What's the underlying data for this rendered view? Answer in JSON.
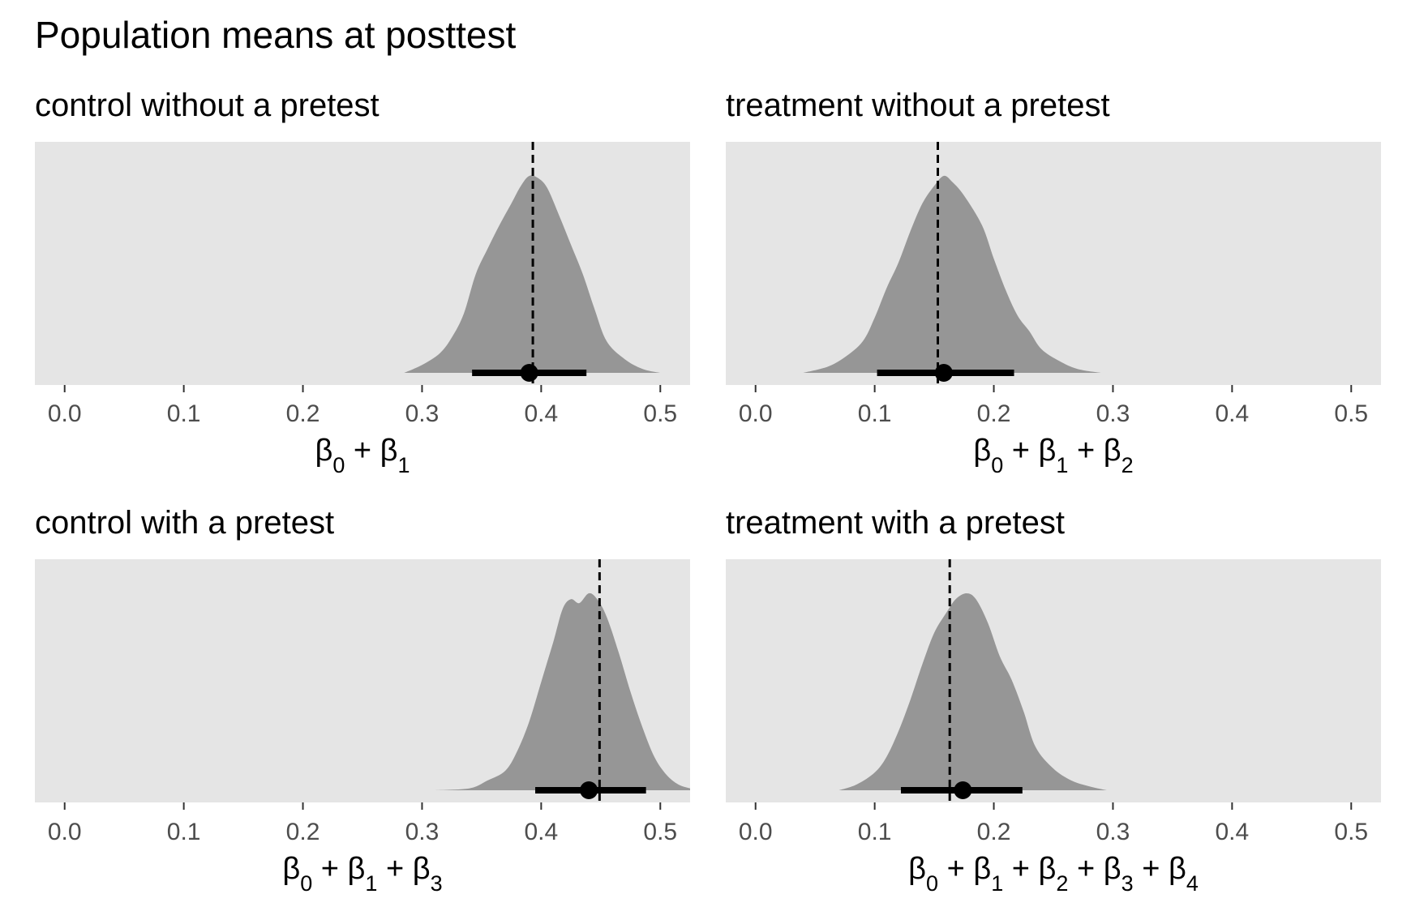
{
  "title": "Population means at posttest",
  "colors": {
    "panel_background": "#e5e5e5",
    "density_fill": "#969696",
    "interval": "#000000",
    "reference_line": "#000000",
    "tick_label": "#4d4d4d"
  },
  "chart_data": [
    {
      "type": "area",
      "title": "control without a pretest",
      "xlabel": "β0 + β1",
      "xlabel_parts": [
        [
          "β",
          "0"
        ],
        [
          "β",
          "1"
        ]
      ],
      "xlim": [
        -0.025,
        0.525
      ],
      "xticks": [
        0.0,
        0.1,
        0.2,
        0.3,
        0.4,
        0.5
      ],
      "tick_labels": [
        "0.0",
        "0.1",
        "0.2",
        "0.3",
        "0.4",
        "0.5"
      ],
      "grid": false,
      "reference_line": 0.393,
      "point_estimate": 0.39,
      "interval": [
        0.342,
        0.438
      ],
      "density": {
        "x": [
          0.285,
          0.3,
          0.315,
          0.325,
          0.335,
          0.345,
          0.355,
          0.365,
          0.375,
          0.383,
          0.39,
          0.397,
          0.405,
          0.415,
          0.425,
          0.435,
          0.445,
          0.455,
          0.47,
          0.485,
          0.5
        ],
        "y": [
          0.0,
          0.04,
          0.1,
          0.18,
          0.3,
          0.5,
          0.63,
          0.75,
          0.86,
          0.95,
          1.0,
          0.99,
          0.94,
          0.8,
          0.65,
          0.5,
          0.32,
          0.16,
          0.07,
          0.02,
          0.0
        ]
      }
    },
    {
      "type": "area",
      "title": "treatment without a pretest",
      "xlabel": "β0 + β1 + β2",
      "xlabel_parts": [
        [
          "β",
          "0"
        ],
        [
          "β",
          "1"
        ],
        [
          "β",
          "2"
        ]
      ],
      "xlim": [
        -0.025,
        0.525
      ],
      "xticks": [
        0.0,
        0.1,
        0.2,
        0.3,
        0.4,
        0.5
      ],
      "tick_labels": [
        "0.0",
        "0.1",
        "0.2",
        "0.3",
        "0.4",
        "0.5"
      ],
      "grid": false,
      "reference_line": 0.153,
      "point_estimate": 0.158,
      "interval": [
        0.102,
        0.217
      ],
      "density": {
        "x": [
          0.04,
          0.06,
          0.075,
          0.09,
          0.1,
          0.11,
          0.12,
          0.13,
          0.14,
          0.15,
          0.158,
          0.165,
          0.175,
          0.19,
          0.2,
          0.21,
          0.22,
          0.23,
          0.24,
          0.255,
          0.27,
          0.29
        ],
        "y": [
          0.0,
          0.03,
          0.08,
          0.16,
          0.28,
          0.43,
          0.56,
          0.72,
          0.86,
          0.95,
          1.0,
          0.97,
          0.9,
          0.75,
          0.58,
          0.42,
          0.29,
          0.21,
          0.12,
          0.06,
          0.02,
          0.0
        ]
      }
    },
    {
      "type": "area",
      "title": "control with a pretest",
      "xlabel": "β0 + β1 + β3",
      "xlabel_parts": [
        [
          "β",
          "0"
        ],
        [
          "β",
          "1"
        ],
        [
          "β",
          "3"
        ]
      ],
      "xlim": [
        -0.025,
        0.525
      ],
      "xticks": [
        0.0,
        0.1,
        0.2,
        0.3,
        0.4,
        0.5
      ],
      "tick_labels": [
        "0.0",
        "0.1",
        "0.2",
        "0.3",
        "0.4",
        "0.5"
      ],
      "grid": false,
      "reference_line": 0.449,
      "point_estimate": 0.44,
      "interval": [
        0.395,
        0.488
      ],
      "density": {
        "x": [
          0.31,
          0.34,
          0.355,
          0.37,
          0.38,
          0.39,
          0.4,
          0.41,
          0.418,
          0.425,
          0.432,
          0.44,
          0.447,
          0.455,
          0.465,
          0.475,
          0.485,
          0.495,
          0.505,
          0.515,
          0.525
        ],
        "y": [
          0.0,
          0.01,
          0.05,
          0.1,
          0.2,
          0.35,
          0.55,
          0.75,
          0.92,
          0.97,
          0.95,
          1.0,
          0.97,
          0.88,
          0.7,
          0.5,
          0.32,
          0.17,
          0.08,
          0.03,
          0.01
        ]
      }
    },
    {
      "type": "area",
      "title": "treatment with a pretest",
      "xlabel": "β0 + β1 + β2 + β3 + β4",
      "xlabel_parts": [
        [
          "β",
          "0"
        ],
        [
          "β",
          "1"
        ],
        [
          "β",
          "2"
        ],
        [
          "β",
          "3"
        ],
        [
          "β",
          "4"
        ]
      ],
      "xlim": [
        -0.025,
        0.525
      ],
      "xticks": [
        0.0,
        0.1,
        0.2,
        0.3,
        0.4,
        0.5
      ],
      "tick_labels": [
        "0.0",
        "0.1",
        "0.2",
        "0.3",
        "0.4",
        "0.5"
      ],
      "grid": false,
      "reference_line": 0.163,
      "point_estimate": 0.174,
      "interval": [
        0.122,
        0.224
      ],
      "density": {
        "x": [
          0.07,
          0.085,
          0.1,
          0.11,
          0.12,
          0.13,
          0.14,
          0.15,
          0.16,
          0.168,
          0.177,
          0.185,
          0.195,
          0.205,
          0.215,
          0.225,
          0.235,
          0.25,
          0.265,
          0.28,
          0.295
        ],
        "y": [
          0.0,
          0.03,
          0.09,
          0.17,
          0.3,
          0.46,
          0.64,
          0.8,
          0.9,
          0.97,
          1.0,
          0.97,
          0.85,
          0.68,
          0.56,
          0.4,
          0.22,
          0.11,
          0.05,
          0.02,
          0.0
        ]
      }
    }
  ]
}
